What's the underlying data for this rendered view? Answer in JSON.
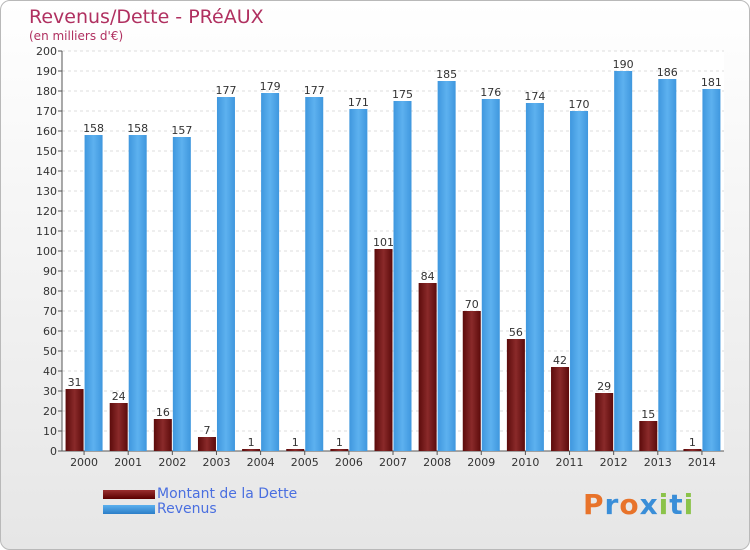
{
  "title": "Revenus/Dette - PRéAUX",
  "subtitle": "(en milliers d'€)",
  "logo_text": "Proxiti",
  "colors": {
    "debt": "#7a1414",
    "revenue": "#4ba3e6",
    "title": "#b03060",
    "legend_text": "#4a6fe0"
  },
  "chart_data": {
    "type": "bar",
    "title": "Revenus/Dette - PRéAUX",
    "ylabel": "(en milliers d'€)",
    "xlabel": "",
    "ylim": [
      0,
      200
    ],
    "y_ticks": [
      0,
      10,
      20,
      30,
      40,
      50,
      60,
      70,
      80,
      90,
      100,
      110,
      120,
      130,
      140,
      150,
      160,
      170,
      180,
      190,
      200
    ],
    "grid": true,
    "legend_position": "bottom-left",
    "categories": [
      "2000",
      "2001",
      "2002",
      "2003",
      "2004",
      "2005",
      "2006",
      "2007",
      "2008",
      "2009",
      "2010",
      "2011",
      "2012",
      "2013",
      "2014"
    ],
    "series": [
      {
        "name": "Montant de la Dette",
        "values": [
          31,
          24,
          16,
          7,
          1,
          1,
          1,
          101,
          84,
          70,
          56,
          42,
          29,
          15,
          1
        ]
      },
      {
        "name": "Revenus",
        "values": [
          158,
          158,
          157,
          177,
          179,
          177,
          171,
          175,
          185,
          176,
          174,
          170,
          190,
          186,
          181
        ]
      }
    ]
  }
}
